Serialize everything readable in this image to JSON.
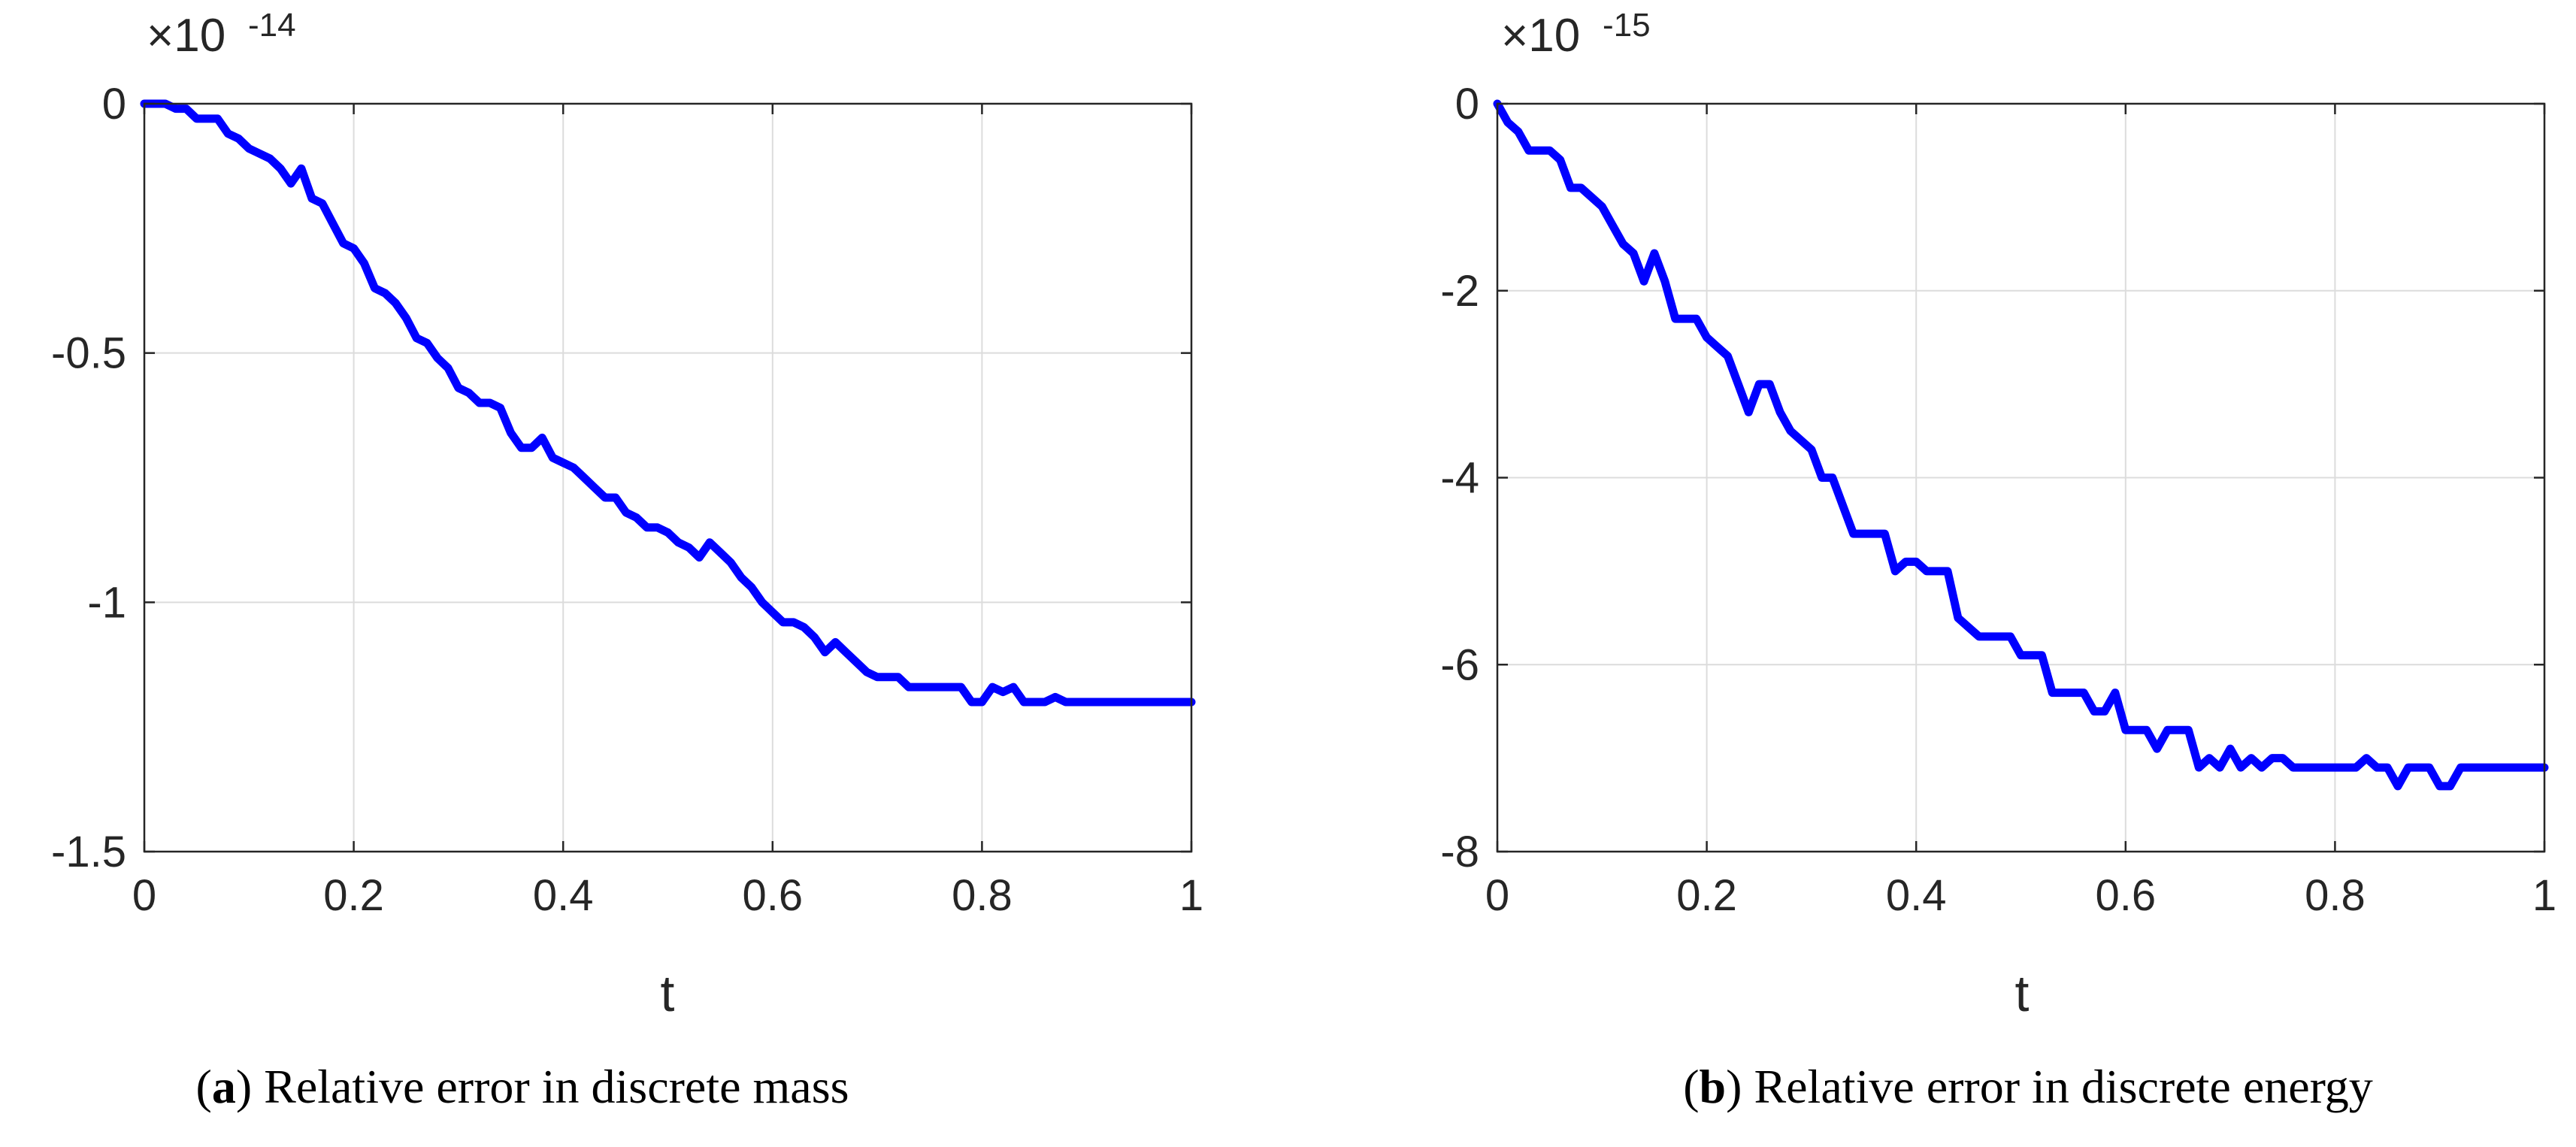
{
  "chart_data": [
    {
      "type": "line",
      "panel_label": "a",
      "caption": "Relative error in discrete mass",
      "xlabel": "t",
      "ylabel": "",
      "xlim": [
        0,
        1
      ],
      "ylim": [
        -1.5,
        0
      ],
      "xticks": [
        0,
        0.2,
        0.4,
        0.6,
        0.8,
        1
      ],
      "xtick_labels": [
        "0",
        "0.2",
        "0.4",
        "0.6",
        "0.8",
        "1"
      ],
      "yticks": [
        0,
        -0.5,
        -1,
        -1.5
      ],
      "ytick_labels": [
        "0",
        "-0.5",
        "-1",
        "-1.5"
      ],
      "exponent_base": "×10",
      "exponent_power": "-14",
      "grid": true,
      "series": [
        {
          "name": "relative mass error",
          "color": "#0000ff",
          "x": [
            0,
            0.02,
            0.03,
            0.04,
            0.05,
            0.06,
            0.07,
            0.08,
            0.09,
            0.1,
            0.11,
            0.12,
            0.13,
            0.14,
            0.15,
            0.16,
            0.17,
            0.18,
            0.19,
            0.2,
            0.21,
            0.22,
            0.23,
            0.24,
            0.25,
            0.26,
            0.27,
            0.28,
            0.29,
            0.3,
            0.31,
            0.32,
            0.33,
            0.34,
            0.35,
            0.36,
            0.37,
            0.38,
            0.39,
            0.4,
            0.41,
            0.42,
            0.43,
            0.44,
            0.45,
            0.46,
            0.47,
            0.48,
            0.49,
            0.5,
            0.51,
            0.52,
            0.53,
            0.54,
            0.55,
            0.56,
            0.57,
            0.58,
            0.59,
            0.6,
            0.61,
            0.62,
            0.63,
            0.64,
            0.65,
            0.66,
            0.67,
            0.68,
            0.69,
            0.7,
            0.71,
            0.72,
            0.73,
            0.74,
            0.75,
            0.76,
            0.77,
            0.78,
            0.79,
            0.8,
            0.81,
            0.82,
            0.83,
            0.84,
            0.85,
            0.86,
            0.87,
            0.88,
            0.9,
            0.95,
            1.0
          ],
          "y": [
            0,
            0,
            -0.01,
            -0.01,
            -0.03,
            -0.03,
            -0.03,
            -0.06,
            -0.07,
            -0.09,
            -0.1,
            -0.11,
            -0.13,
            -0.16,
            -0.13,
            -0.19,
            -0.2,
            -0.24,
            -0.28,
            -0.29,
            -0.32,
            -0.37,
            -0.38,
            -0.4,
            -0.43,
            -0.47,
            -0.48,
            -0.51,
            -0.53,
            -0.57,
            -0.58,
            -0.6,
            -0.6,
            -0.61,
            -0.66,
            -0.69,
            -0.69,
            -0.67,
            -0.71,
            -0.72,
            -0.73,
            -0.75,
            -0.77,
            -0.79,
            -0.79,
            -0.82,
            -0.83,
            -0.85,
            -0.85,
            -0.86,
            -0.88,
            -0.89,
            -0.91,
            -0.88,
            -0.9,
            -0.92,
            -0.95,
            -0.97,
            -1.0,
            -1.02,
            -1.04,
            -1.04,
            -1.05,
            -1.07,
            -1.1,
            -1.08,
            -1.1,
            -1.12,
            -1.14,
            -1.15,
            -1.15,
            -1.15,
            -1.17,
            -1.17,
            -1.17,
            -1.17,
            -1.17,
            -1.17,
            -1.2,
            -1.2,
            -1.17,
            -1.18,
            -1.17,
            -1.2,
            -1.2,
            -1.2,
            -1.19,
            -1.2,
            -1.2,
            -1.2,
            -1.2
          ]
        }
      ]
    },
    {
      "type": "line",
      "panel_label": "b",
      "caption": "Relative error in discrete energy",
      "xlabel": "t",
      "ylabel": "",
      "xlim": [
        0,
        1
      ],
      "ylim": [
        -8,
        0
      ],
      "xticks": [
        0,
        0.2,
        0.4,
        0.6,
        0.8,
        1
      ],
      "xtick_labels": [
        "0",
        "0.2",
        "0.4",
        "0.6",
        "0.8",
        "1"
      ],
      "yticks": [
        0,
        -2,
        -4,
        -6,
        -8
      ],
      "ytick_labels": [
        "0",
        "-2",
        "-4",
        "-6",
        "-8"
      ],
      "exponent_base": "×10",
      "exponent_power": "-15",
      "grid": true,
      "series": [
        {
          "name": "relative energy error",
          "color": "#0000ff",
          "x": [
            0,
            0.01,
            0.02,
            0.03,
            0.04,
            0.05,
            0.06,
            0.07,
            0.08,
            0.09,
            0.1,
            0.11,
            0.12,
            0.13,
            0.14,
            0.15,
            0.16,
            0.17,
            0.18,
            0.19,
            0.2,
            0.21,
            0.22,
            0.23,
            0.24,
            0.25,
            0.26,
            0.27,
            0.28,
            0.29,
            0.3,
            0.31,
            0.32,
            0.33,
            0.34,
            0.35,
            0.36,
            0.37,
            0.38,
            0.39,
            0.4,
            0.41,
            0.42,
            0.43,
            0.44,
            0.45,
            0.46,
            0.47,
            0.48,
            0.49,
            0.5,
            0.51,
            0.52,
            0.53,
            0.54,
            0.55,
            0.56,
            0.57,
            0.58,
            0.59,
            0.6,
            0.61,
            0.62,
            0.63,
            0.64,
            0.65,
            0.66,
            0.67,
            0.68,
            0.69,
            0.7,
            0.71,
            0.72,
            0.73,
            0.74,
            0.75,
            0.76,
            0.77,
            0.78,
            0.8,
            0.82,
            0.83,
            0.84,
            0.85,
            0.86,
            0.87,
            0.88,
            0.89,
            0.9,
            0.91,
            0.92,
            0.93,
            0.95,
            1.0
          ],
          "y": [
            0,
            -0.2,
            -0.3,
            -0.5,
            -0.5,
            -0.5,
            -0.6,
            -0.9,
            -0.9,
            -1.0,
            -1.1,
            -1.3,
            -1.5,
            -1.6,
            -1.9,
            -1.6,
            -1.9,
            -2.3,
            -2.3,
            -2.3,
            -2.5,
            -2.6,
            -2.7,
            -3.0,
            -3.3,
            -3.0,
            -3.0,
            -3.3,
            -3.5,
            -3.6,
            -3.7,
            -4.0,
            -4.0,
            -4.3,
            -4.6,
            -4.6,
            -4.6,
            -4.6,
            -5.0,
            -4.9,
            -4.9,
            -5.0,
            -5.0,
            -5.0,
            -5.5,
            -5.6,
            -5.7,
            -5.7,
            -5.7,
            -5.7,
            -5.9,
            -5.9,
            -5.9,
            -6.3,
            -6.3,
            -6.3,
            -6.3,
            -6.5,
            -6.5,
            -6.3,
            -6.7,
            -6.7,
            -6.7,
            -6.9,
            -6.7,
            -6.7,
            -6.7,
            -7.1,
            -7.0,
            -7.1,
            -6.9,
            -7.1,
            -7.0,
            -7.1,
            -7.0,
            -7.0,
            -7.1,
            -7.1,
            -7.1,
            -7.1,
            -7.1,
            -7.0,
            -7.1,
            -7.1,
            -7.3,
            -7.1,
            -7.1,
            -7.1,
            -7.3,
            -7.3,
            -7.1,
            -7.1,
            -7.1,
            -7.1
          ]
        }
      ]
    }
  ]
}
